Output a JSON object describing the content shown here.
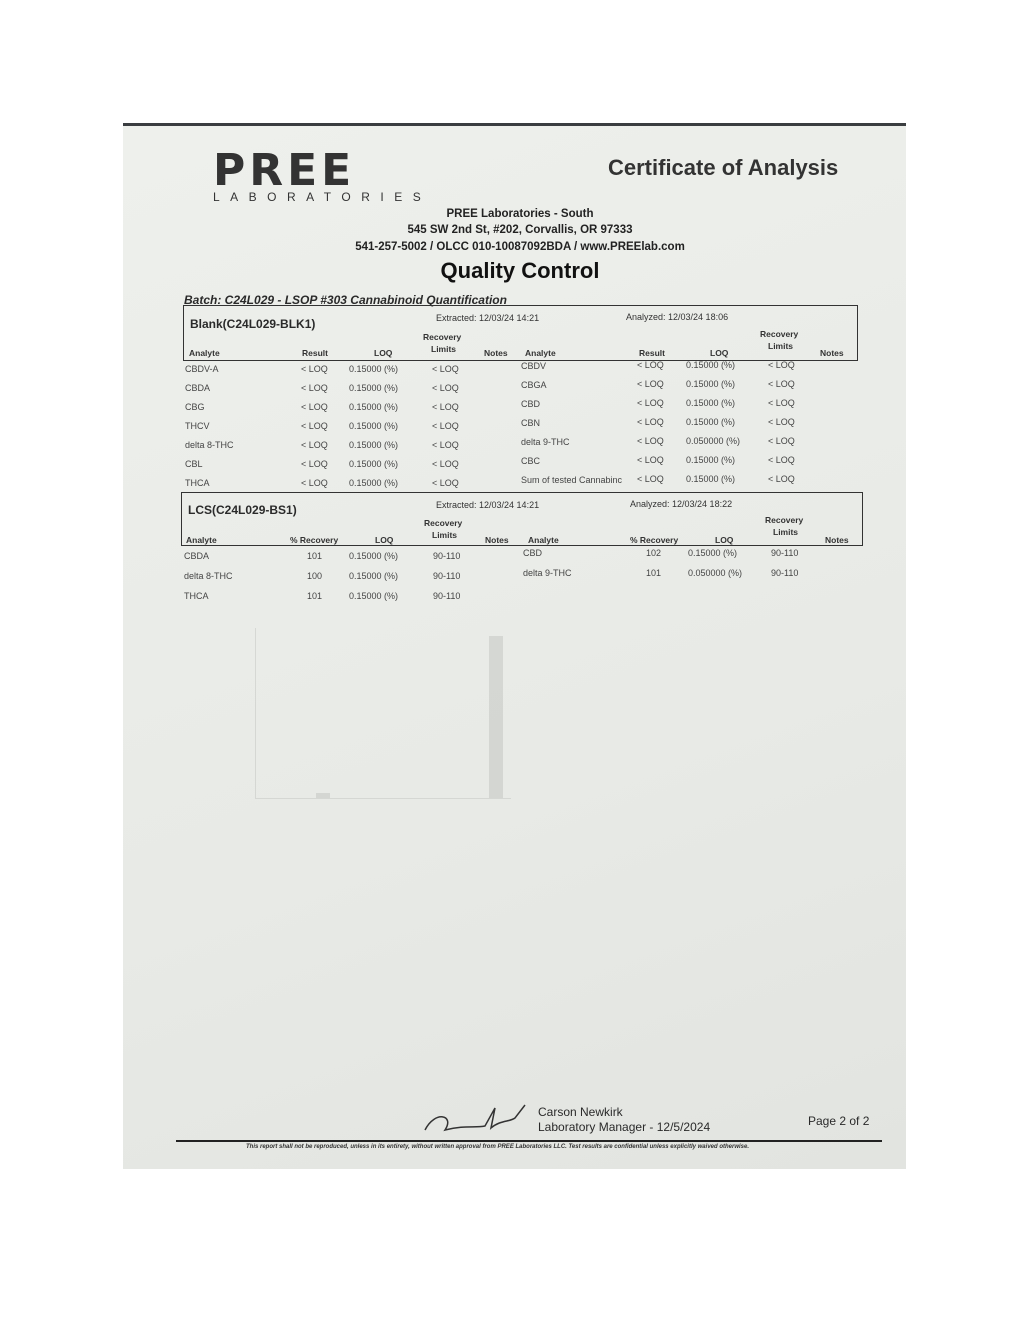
{
  "header": {
    "logo_text": "PREE",
    "logo_sub": "LABORATORIES",
    "doc_title": "Certificate of Analysis",
    "lab_name": "PREE Laboratories - South",
    "lab_address": "545 SW 2nd St, #202, Corvallis, OR 97333",
    "lab_contact": "541-257-5002 / OLCC 010-10087092BDA / www.PREElab.com",
    "section_title": "Quality Control",
    "batch": "Batch:  C24L029 - LSOP #303 Cannabinoid Quantification"
  },
  "blank": {
    "title": "Blank(C24L029-BLK1)",
    "extracted": "Extracted: 12/03/24  14:21",
    "analyzed": "Analyzed: 12/03/24  18:06",
    "columns": {
      "analyte": "Analyte",
      "result": "Result",
      "loq": "LOQ",
      "recovery_top": "Recovery",
      "recovery_bottom": "Limits",
      "notes": "Notes"
    },
    "rows": [
      {
        "a1": "CBDV-A",
        "r1": "< LOQ",
        "l1": "0.15000 (%)",
        "rl1": "< LOQ",
        "a2": "CBDV",
        "r2": "< LOQ",
        "l2": "0.15000 (%)",
        "rl2": "< LOQ"
      },
      {
        "a1": "CBDA",
        "r1": "< LOQ",
        "l1": "0.15000 (%)",
        "rl1": "< LOQ",
        "a2": "CBGA",
        "r2": "< LOQ",
        "l2": "0.15000 (%)",
        "rl2": "< LOQ"
      },
      {
        "a1": "CBG",
        "r1": "< LOQ",
        "l1": "0.15000 (%)",
        "rl1": "< LOQ",
        "a2": "CBD",
        "r2": "< LOQ",
        "l2": "0.15000 (%)",
        "rl2": "< LOQ"
      },
      {
        "a1": "THCV",
        "r1": "< LOQ",
        "l1": "0.15000 (%)",
        "rl1": "< LOQ",
        "a2": "CBN",
        "r2": "< LOQ",
        "l2": "0.15000 (%)",
        "rl2": "< LOQ"
      },
      {
        "a1": "delta 8-THC",
        "r1": "< LOQ",
        "l1": "0.15000 (%)",
        "rl1": "< LOQ",
        "a2": "delta 9-THC",
        "r2": "< LOQ",
        "l2": "0.050000 (%)",
        "rl2": "< LOQ"
      },
      {
        "a1": "CBL",
        "r1": "< LOQ",
        "l1": "0.15000 (%)",
        "rl1": "< LOQ",
        "a2": "CBC",
        "r2": "< LOQ",
        "l2": "0.15000 (%)",
        "rl2": "< LOQ"
      },
      {
        "a1": "THCA",
        "r1": "< LOQ",
        "l1": "0.15000 (%)",
        "rl1": "< LOQ",
        "a2": "Sum of tested Cannabinc",
        "r2": "< LOQ",
        "l2": "0.15000 (%)",
        "rl2": "< LOQ"
      }
    ]
  },
  "lcs": {
    "title": "LCS(C24L029-BS1)",
    "extracted": "Extracted: 12/03/24  14:21",
    "analyzed": "Analyzed: 12/03/24  18:22",
    "columns": {
      "analyte": "Analyte",
      "recovery": "% Recovery",
      "loq": "LOQ",
      "recovery_top": "Recovery",
      "recovery_bottom": "Limits",
      "notes": "Notes"
    },
    "rows": [
      {
        "a1": "CBDA",
        "r1": "101",
        "l1": "0.15000 (%)",
        "rl1": "90-110",
        "a2": "CBD",
        "r2": "102",
        "l2": "0.15000 (%)",
        "rl2": "90-110"
      },
      {
        "a1": "delta 8-THC",
        "r1": "100",
        "l1": "0.15000 (%)",
        "rl1": "90-110",
        "a2": "delta 9-THC",
        "r2": "101",
        "l2": "0.050000 (%)",
        "rl2": "90-110"
      },
      {
        "a1": "THCA",
        "r1": "101",
        "l1": "0.15000 (%)",
        "rl1": "90-110"
      }
    ]
  },
  "signature": {
    "name": "Carson Newkirk",
    "title": "Laboratory Manager - 12/5/2024",
    "page": "Page 2 of 2",
    "footer": "This report shall not be reproduced, unless in its entirety, without written approval from PREE Laboratories LLC. Test results are confidential unless explicitly waived otherwise."
  }
}
